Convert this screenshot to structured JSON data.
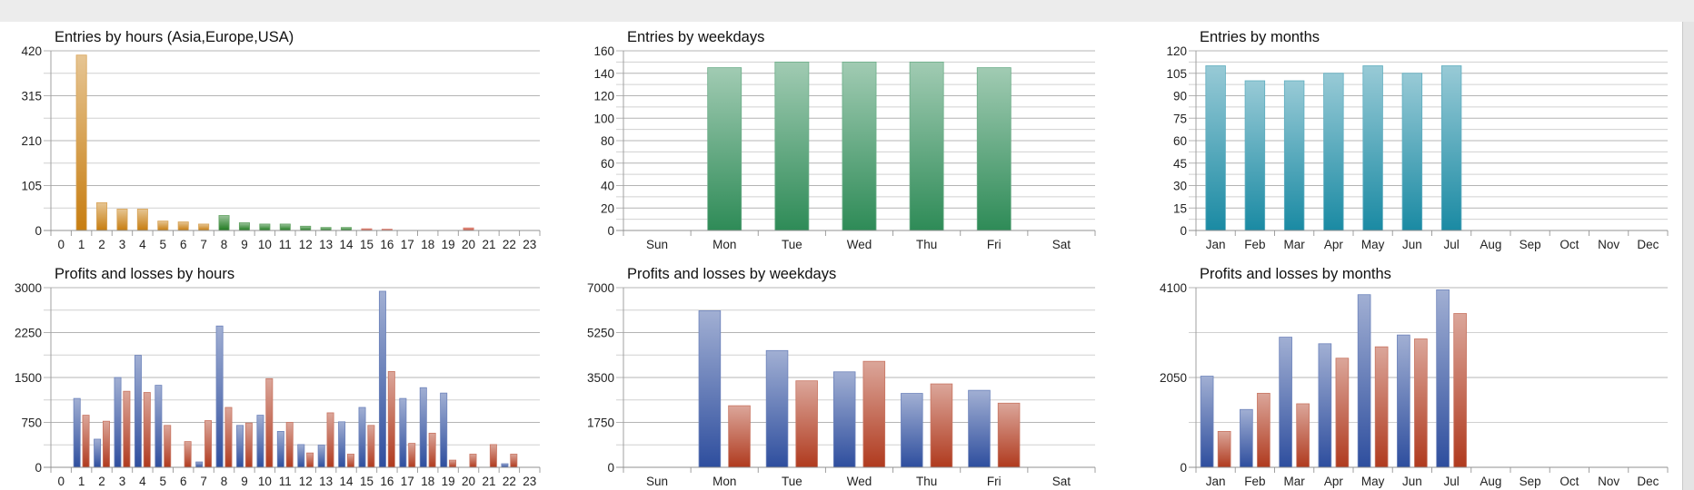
{
  "chart_data": [
    {
      "type": "bar",
      "title": "Entries by hours (Asia,Europe,USA)",
      "categories": [
        "0",
        "1",
        "2",
        "3",
        "4",
        "5",
        "6",
        "7",
        "8",
        "9",
        "10",
        "11",
        "12",
        "13",
        "14",
        "15",
        "16",
        "17",
        "18",
        "19",
        "20",
        "21",
        "22",
        "23"
      ],
      "values": [
        0,
        410,
        65,
        50,
        50,
        22,
        20,
        15,
        35,
        18,
        15,
        15,
        10,
        7,
        7,
        4,
        3,
        0,
        0,
        0,
        6,
        0,
        0,
        0
      ],
      "bar_colors": [
        "#c77d10",
        "#c77d10",
        "#c77d10",
        "#c77d10",
        "#c77d10",
        "#c77d10",
        "#c77d10",
        "#c77d10",
        "#1f7a1f",
        "#1f7a1f",
        "#1f7a1f",
        "#1f7a1f",
        "#1f7a1f",
        "#1f7a1f",
        "#1f7a1f",
        "#c8402a",
        "#c8402a",
        "#c8402a",
        "#c8402a",
        "#c8402a",
        "#c8402a",
        "#c8402a",
        "#c8402a",
        "#c8402a"
      ],
      "yticks": [
        "0",
        "105",
        "210",
        "315",
        "420"
      ],
      "ylim": [
        0,
        420
      ],
      "grid": true
    },
    {
      "type": "bar",
      "title": "Entries by weekdays",
      "categories": [
        "Sun",
        "Mon",
        "Tue",
        "Wed",
        "Thu",
        "Fri",
        "Sat"
      ],
      "values": [
        0,
        145,
        150,
        150,
        150,
        145,
        0
      ],
      "color": "#2e8b57",
      "yticks": [
        "0",
        "20",
        "40",
        "60",
        "80",
        "100",
        "120",
        "140",
        "160"
      ],
      "ylim": [
        0,
        160
      ],
      "grid": true
    },
    {
      "type": "bar",
      "title": "Entries by months",
      "categories": [
        "Jan",
        "Feb",
        "Mar",
        "Apr",
        "May",
        "Jun",
        "Jul",
        "Aug",
        "Sep",
        "Oct",
        "Nov",
        "Dec"
      ],
      "values": [
        110,
        100,
        100,
        105,
        110,
        105,
        110,
        0,
        0,
        0,
        0,
        0
      ],
      "color": "#1a8aa3",
      "yticks": [
        "0",
        "15",
        "30",
        "45",
        "60",
        "75",
        "90",
        "105",
        "120"
      ],
      "ylim": [
        0,
        120
      ],
      "grid": true
    },
    {
      "type": "bar",
      "title": "Profits and losses by hours",
      "categories": [
        "0",
        "1",
        "2",
        "3",
        "4",
        "5",
        "6",
        "7",
        "8",
        "9",
        "10",
        "11",
        "12",
        "13",
        "14",
        "15",
        "16",
        "17",
        "18",
        "19",
        "20",
        "21",
        "22",
        "23"
      ],
      "series": [
        {
          "values": [
            0,
            1150,
            470,
            1500,
            1870,
            1370,
            0,
            90,
            2360,
            700,
            870,
            600,
            380,
            370,
            760,
            1000,
            2940,
            1150,
            1330,
            1240,
            0,
            0,
            60,
            0
          ],
          "color": "#2e4e9e"
        },
        {
          "values": [
            0,
            870,
            770,
            1270,
            1250,
            700,
            430,
            780,
            1000,
            740,
            1480,
            750,
            240,
            910,
            220,
            700,
            1600,
            400,
            570,
            120,
            220,
            380,
            220,
            0
          ],
          "color": "#b03a1e"
        }
      ],
      "yticks": [
        "0",
        "750",
        "1500",
        "2250",
        "3000"
      ],
      "ylim": [
        0,
        3000
      ],
      "grid": true
    },
    {
      "type": "bar",
      "title": "Profits and losses by weekdays",
      "categories": [
        "Sun",
        "Mon",
        "Tue",
        "Wed",
        "Thu",
        "Fri",
        "Sat"
      ],
      "series": [
        {
          "values": [
            0,
            6100,
            4550,
            3720,
            2880,
            3000,
            0
          ],
          "color": "#2e4e9e"
        },
        {
          "values": [
            0,
            2400,
            3370,
            4130,
            3250,
            2500,
            0
          ],
          "color": "#b03a1e"
        }
      ],
      "yticks": [
        "0",
        "1750",
        "3500",
        "5250",
        "7000"
      ],
      "ylim": [
        0,
        7000
      ],
      "grid": true
    },
    {
      "type": "bar",
      "title": "Profits and losses by months",
      "categories": [
        "Jan",
        "Feb",
        "Mar",
        "Apr",
        "May",
        "Jun",
        "Jul",
        "Aug",
        "Sep",
        "Oct",
        "Nov",
        "Dec"
      ],
      "series": [
        {
          "values": [
            2080,
            1320,
            2970,
            2820,
            3940,
            3020,
            4050,
            0,
            0,
            0,
            0,
            0
          ],
          "color": "#2e4e9e"
        },
        {
          "values": [
            820,
            1690,
            1450,
            2490,
            2750,
            2930,
            3510,
            0,
            0,
            0,
            0,
            0
          ],
          "color": "#b03a1e"
        }
      ],
      "yticks": [
        "0",
        "2050",
        "4100"
      ],
      "ylim": [
        0,
        4100
      ],
      "grid": true
    }
  ]
}
